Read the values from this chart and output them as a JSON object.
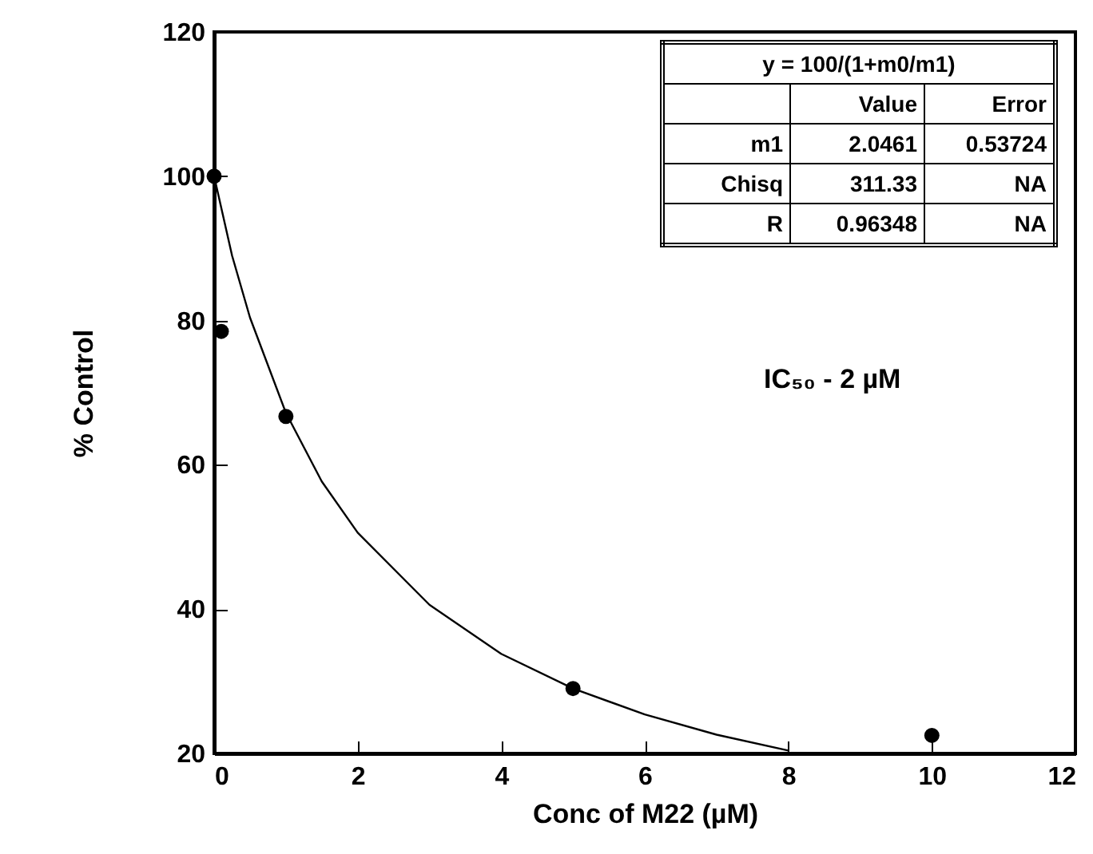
{
  "chart_data": {
    "type": "scatter",
    "xlabel": "Conc of M22 (µM)",
    "ylabel": "% Control",
    "xlim": [
      0,
      12
    ],
    "xticks": [
      0,
      2,
      4,
      6,
      8,
      10,
      12
    ],
    "ylim": [
      20,
      120
    ],
    "yticks": [
      20,
      40,
      60,
      80,
      100,
      120
    ],
    "grid": false,
    "marker": "circle",
    "series": [
      {
        "color": "#000000",
        "x": [
          0,
          0.1,
          1,
          5,
          10
        ],
        "values": [
          100,
          78.5,
          66.7,
          29,
          22.5
        ]
      },
      {
        "type": "line",
        "color": "#000000",
        "marker": "none",
        "x": [
          0,
          0.25,
          0.5,
          1,
          1.5,
          2,
          3,
          4,
          5,
          6,
          7,
          8
        ],
        "values": [
          100,
          89,
          80.4,
          67.2,
          57.7,
          50.6,
          40.6,
          33.8,
          29,
          25.4,
          22.6,
          20.4
        ]
      }
    ],
    "annotations": [
      "y = 100/(1+m0/m1)",
      "Value",
      "Error",
      "m1",
      "2.0461",
      "0.53724",
      "Chisq",
      "311.33",
      "NA",
      "R",
      "0.96348",
      "NA",
      "IC₅₀ - 2 µM"
    ]
  }
}
